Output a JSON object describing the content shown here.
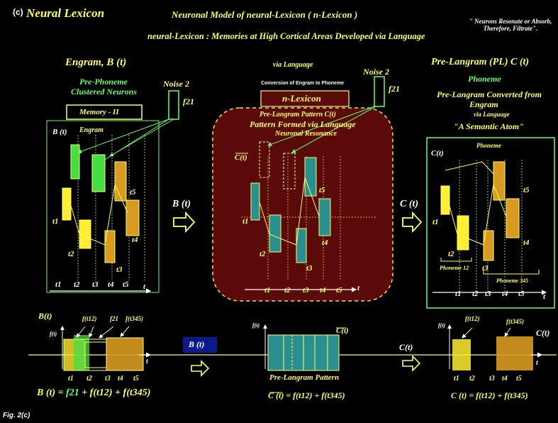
{
  "header": {
    "panel_label": "(c)",
    "section_title": "Neural Lexicon",
    "main_title": "Neuronal Model of neural-Lexicon ( n-Lexicon )",
    "subtitle": "neural-Lexicon : Memories at High Cortical Areas Developed via Language",
    "quote": "\" Neurons Resonate or Absorb, Therefore, Filtrate\"."
  },
  "left_panel": {
    "title": "Engram,",
    "title_symbol": "B (t)",
    "subtitle1": "Pre-Phoneme",
    "subtitle2": "Clustered Neurons",
    "noise_label": "Noise 2",
    "noise_symbol": "f21",
    "memory_box": "Memory - II",
    "engram_label": "Engram",
    "b_label": "B (t)",
    "times": [
      "t1",
      "t2",
      "t3",
      "t4",
      "t5"
    ],
    "axis_t": "t"
  },
  "center_panel": {
    "via_language": "via Language",
    "conversion": "Conversion of Engram to Phoneme",
    "noise_label": "Noise 2",
    "noise_symbol": "f21",
    "lexicon_box": "n-Lexicon",
    "pattern_line1": "Pre-Langram Pattern C(t)",
    "pattern_line2": "Pattern Formed via Language",
    "resonance": "Neuronal Resonance",
    "c_bar": "C(t)",
    "times": [
      "t1",
      "t2",
      "t3",
      "t4",
      "t5"
    ],
    "axis_t": "t"
  },
  "right_panel": {
    "title": "Pre-Langram (PL)",
    "title_symbol": "C (t)",
    "phoneme_green": "Phoneme",
    "converted1": "Pre-Langram Converted from",
    "converted2": "Engram",
    "via_language": "via Language",
    "semantic_atom": "\"A Semantic Atom\"",
    "phoneme_inner": "Phoneme",
    "c_label": "C(t)",
    "phoneme12": "Phoneme 12",
    "phoneme345": "Phoneme 345",
    "times": [
      "t1",
      "t2",
      "t3",
      "t4",
      "t5"
    ],
    "axis_t": "t"
  },
  "arrows": {
    "left_symbol": "B (t)",
    "right_symbol": "C (t)"
  },
  "bottom": {
    "left_b": "B(t)",
    "left_ft": "f(t)",
    "f12": "f(t12)",
    "f21": "f21",
    "f345": "f(t345)",
    "left_times": [
      "t1",
      "t2",
      "t3",
      "t4",
      "t5"
    ],
    "axis_t": "t",
    "left_equation_lhs": "B (t) =",
    "left_equation_f21": "f21",
    "left_equation_rest": "+ f(t12) + f(t345)",
    "mid_box": "B (t)",
    "mid_ft": "f(t)",
    "mid_c": "C(t)",
    "mid_caption": "Pre-Langram Pattern",
    "mid_equation": "C (t) = f(t12) + f(t345)",
    "right_c_left": "C(t)",
    "right_ft": "f(t)",
    "right_f12": "f(t12)",
    "right_f345": "f(t345)",
    "right_c_right": "C(t)",
    "right_times": [
      "t1",
      "t2",
      "t3",
      "t4",
      "t5"
    ],
    "right_equation": "C (t) = f(t12) + f(t345)"
  },
  "footer": {
    "figure": "Fig. 2(c)"
  },
  "colors": {
    "yellow": "#ffff66",
    "green": "#66ff66",
    "maroon": "#5a0a08",
    "teal": "#2a8f8f",
    "orange": "#d89a20",
    "navy": "#0a1a8c"
  }
}
